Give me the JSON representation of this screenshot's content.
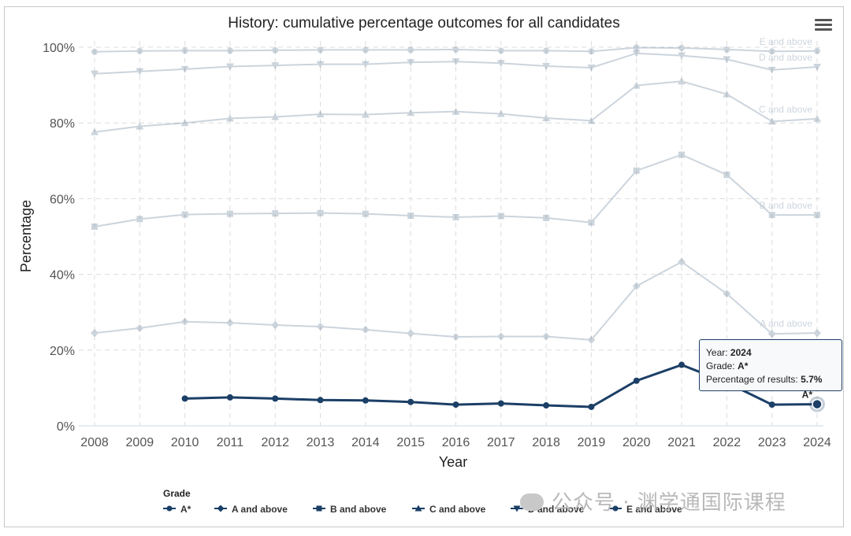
{
  "menu_icon": "hamburger-menu-icon",
  "chart_data": {
    "type": "line",
    "title": "History: cumulative percentage outcomes for all candidates",
    "xlabel": "Year",
    "ylabel": "Percentage",
    "x": [
      2008,
      2009,
      2010,
      2011,
      2012,
      2013,
      2014,
      2015,
      2016,
      2017,
      2018,
      2019,
      2020,
      2021,
      2022,
      2023,
      2024
    ],
    "ylim": [
      0,
      100
    ],
    "y_ticks": [
      "0%",
      "20%",
      "40%",
      "60%",
      "80%",
      "100%"
    ],
    "grid": true,
    "legend_title": "Grade",
    "legend_position": "bottom-left",
    "series": [
      {
        "name": "A*",
        "color": "#1b3f66",
        "marker": "circle",
        "highlighted": true,
        "end_label": "A*",
        "values": [
          null,
          null,
          7.2,
          7.5,
          7.2,
          6.8,
          6.7,
          6.3,
          5.6,
          5.9,
          5.4,
          5.0,
          11.9,
          16.1,
          11.4,
          5.6,
          5.7
        ]
      },
      {
        "name": "A and above",
        "color": "#1b3f66",
        "marker": "diamond",
        "highlighted": false,
        "end_label": "A and above",
        "values": [
          24.5,
          25.8,
          27.5,
          27.2,
          26.6,
          26.2,
          25.4,
          24.4,
          23.5,
          23.6,
          23.6,
          22.7,
          36.9,
          43.3,
          34.9,
          24.3,
          24.5
        ]
      },
      {
        "name": "B and above",
        "color": "#1b3f66",
        "marker": "square",
        "highlighted": false,
        "end_label": "B and above",
        "values": [
          52.6,
          54.6,
          55.8,
          56.0,
          56.1,
          56.2,
          56.0,
          55.5,
          55.1,
          55.4,
          54.9,
          53.7,
          67.4,
          71.6,
          66.3,
          55.7,
          55.7
        ]
      },
      {
        "name": "C and above",
        "color": "#1b3f66",
        "marker": "triangle",
        "highlighted": false,
        "end_label": "C and above",
        "values": [
          77.6,
          79.1,
          80.0,
          81.2,
          81.6,
          82.3,
          82.2,
          82.7,
          83.0,
          82.4,
          81.3,
          80.6,
          89.9,
          91.0,
          87.6,
          80.4,
          81.1
        ]
      },
      {
        "name": "D and above",
        "color": "#1b3f66",
        "marker": "triangle-down",
        "highlighted": false,
        "end_label": "D and above",
        "values": [
          93.0,
          93.6,
          94.2,
          94.9,
          95.2,
          95.5,
          95.5,
          96.0,
          96.2,
          95.8,
          95.0,
          94.6,
          98.4,
          97.8,
          96.8,
          94.0,
          94.8
        ]
      },
      {
        "name": "E and above",
        "color": "#1b3f66",
        "marker": "circle",
        "highlighted": false,
        "end_label": "E and above",
        "values": [
          98.8,
          99.0,
          99.1,
          99.1,
          99.2,
          99.3,
          99.3,
          99.3,
          99.4,
          99.1,
          99.1,
          98.9,
          99.9,
          99.8,
          99.4,
          98.9,
          99.0
        ]
      }
    ]
  },
  "tooltip": {
    "year_label": "Year: ",
    "year": "2024",
    "grade_label": "Grade: ",
    "grade": "A*",
    "pct_label": "Percentage of results: ",
    "pct": "5.7%"
  },
  "watermark": "公众号 · 渊学通国际课程"
}
